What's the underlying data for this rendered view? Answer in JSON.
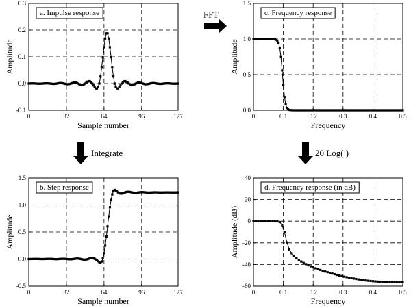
{
  "operations": {
    "fft": "FFT",
    "integrate": "Integrate",
    "log": "20 Log(   )"
  },
  "chart_data": [
    {
      "id": "a",
      "type": "scatter",
      "title": "a.  Impulse response",
      "xlabel": "Sample number",
      "ylabel": "Amplitude",
      "xlim": [
        0,
        127
      ],
      "ylim": [
        -0.1,
        0.3
      ],
      "xticks": [
        0,
        32,
        64,
        96,
        127
      ],
      "yticks": [
        -0.1,
        0.0,
        0.1,
        0.2,
        0.3
      ],
      "xtick_labels": [
        "0",
        "32",
        "64",
        "96",
        "127"
      ],
      "ytick_labels": [
        "-0.1",
        "0.0",
        "0.1",
        "0.2",
        "0.3"
      ],
      "grid": true,
      "connected": true,
      "y": [
        0.0,
        0.0003,
        0.0005,
        0.0006,
        0.0005,
        0.0003,
        0.0,
        -0.0003,
        -0.0005,
        -0.0006,
        -0.0005,
        -0.0003,
        0.0,
        0.0004,
        0.0008,
        0.001,
        0.0009,
        0.0005,
        0.0,
        -0.0006,
        -0.0011,
        -0.0014,
        -0.0012,
        -0.0007,
        0.0,
        0.0009,
        0.0016,
        0.0019,
        0.0017,
        0.0009,
        0.0,
        -0.0012,
        -0.0022,
        -0.0027,
        -0.0024,
        -0.0013,
        0.0,
        0.0017,
        0.0031,
        0.0038,
        0.0034,
        0.0018,
        0.0,
        -0.0025,
        -0.0045,
        -0.0056,
        -0.005,
        -0.0027,
        0.0,
        0.0038,
        0.0071,
        0.009,
        0.0082,
        0.0046,
        0.0,
        -0.007,
        -0.0138,
        -0.0185,
        -0.0182,
        -0.0115,
        0.0,
        0.0264,
        0.0597,
        0.0985,
        0.1361,
        0.1686,
        0.1876,
        0.1876,
        0.1686,
        0.1361,
        0.0985,
        0.0597,
        0.0264,
        0.0,
        -0.0115,
        -0.0182,
        -0.0185,
        -0.0138,
        -0.007,
        0.0,
        0.0046,
        0.0082,
        0.009,
        0.0071,
        0.0038,
        0.0,
        -0.0027,
        -0.005,
        -0.0056,
        -0.0045,
        -0.0025,
        0.0,
        0.0018,
        0.0034,
        0.0038,
        0.0031,
        0.0017,
        0.0,
        -0.0013,
        -0.0024,
        -0.0027,
        -0.0022,
        -0.0012,
        0.0,
        0.0009,
        0.0017,
        0.0019,
        0.0016,
        0.0009,
        0.0,
        -0.0007,
        -0.0012,
        -0.0014,
        -0.0011,
        -0.0006,
        0.0,
        0.0005,
        0.0009,
        0.001,
        0.0008,
        0.0004,
        0.0,
        -0.0003,
        -0.0005,
        -0.0006,
        -0.0005,
        -0.0003,
        0.0
      ]
    },
    {
      "id": "c",
      "type": "scatter",
      "title": "c.  Frequency response",
      "xlabel": "Frequency",
      "ylabel": "Amplitude",
      "xlim": [
        0,
        0.5
      ],
      "ylim": [
        0,
        1.5
      ],
      "xticks": [
        0,
        0.1,
        0.2,
        0.3,
        0.4,
        0.5
      ],
      "yticks": [
        0.0,
        0.5,
        1.0,
        1.5
      ],
      "xtick_labels": [
        "0",
        "0.1",
        "0.2",
        "0.3",
        "0.4",
        "0.5"
      ],
      "ytick_labels": [
        "0.0",
        "0.5",
        "1.0",
        "1.5"
      ],
      "grid": true,
      "connected": true,
      "x": [
        0.0,
        0.004,
        0.008,
        0.012,
        0.016,
        0.02,
        0.024,
        0.028,
        0.032,
        0.036,
        0.04,
        0.044,
        0.048,
        0.052,
        0.056,
        0.06,
        0.064,
        0.068,
        0.072,
        0.076,
        0.08,
        0.084,
        0.088,
        0.092,
        0.096,
        0.1,
        0.104,
        0.108,
        0.112,
        0.116,
        0.12,
        0.124,
        0.128,
        0.132,
        0.136,
        0.14,
        0.144,
        0.148,
        0.152,
        0.156,
        0.16,
        0.164,
        0.168,
        0.172,
        0.176,
        0.18,
        0.184,
        0.188,
        0.192,
        0.196,
        0.2,
        0.204,
        0.208,
        0.212,
        0.216,
        0.22,
        0.224,
        0.228,
        0.232,
        0.236,
        0.24,
        0.244,
        0.248,
        0.252,
        0.256,
        0.26,
        0.264,
        0.268,
        0.272,
        0.276,
        0.28,
        0.284,
        0.288,
        0.292,
        0.296,
        0.3,
        0.304,
        0.308,
        0.312,
        0.316,
        0.32,
        0.324,
        0.328,
        0.332,
        0.336,
        0.34,
        0.344,
        0.348,
        0.352,
        0.356,
        0.36,
        0.364,
        0.368,
        0.372,
        0.376,
        0.38,
        0.384,
        0.388,
        0.392,
        0.396,
        0.4,
        0.404,
        0.408,
        0.412,
        0.416,
        0.42,
        0.424,
        0.428,
        0.432,
        0.436,
        0.44,
        0.444,
        0.448,
        0.452,
        0.456,
        0.46,
        0.464,
        0.468,
        0.472,
        0.476,
        0.48,
        0.484,
        0.488,
        0.492,
        0.496,
        0.5
      ],
      "y": [
        1.0,
        1.0,
        1.0,
        1.0,
        1.0,
        1.0,
        1.0,
        1.0,
        1.0,
        1.0,
        1.0,
        1.0,
        1.0,
        1.0,
        1.0,
        1.0,
        0.999,
        0.998,
        0.995,
        0.989,
        0.976,
        0.945,
        0.877,
        0.747,
        0.559,
        0.353,
        0.185,
        0.082,
        0.032,
        0.012,
        0.005,
        0.002,
        0.001,
        0.0,
        0.0,
        0.0,
        0.0,
        0.0,
        0.0,
        0.0,
        0.0,
        0.0,
        0.0,
        0.0,
        0.0,
        0.0,
        0.0,
        0.0,
        0.0,
        0.0,
        0.0,
        0.0,
        0.0,
        0.0,
        0.0,
        0.0,
        0.0,
        0.0,
        0.0,
        0.0,
        0.0,
        0.0,
        0.0,
        0.0,
        0.0,
        0.0,
        0.0,
        0.0,
        0.0,
        0.0,
        0.0,
        0.0,
        0.0,
        0.0,
        0.0,
        0.0,
        0.0,
        0.0,
        0.0,
        0.0,
        0.0,
        0.0,
        0.0,
        0.0,
        0.0,
        0.0,
        0.0,
        0.0,
        0.0,
        0.0,
        0.0,
        0.0,
        0.0,
        0.0,
        0.0,
        0.0,
        0.0,
        0.0,
        0.0,
        0.0,
        0.0,
        0.0,
        0.0,
        0.0,
        0.0,
        0.0,
        0.0,
        0.0,
        0.0,
        0.0,
        0.0,
        0.0,
        0.0,
        0.0,
        0.0,
        0.0,
        0.0,
        0.0,
        0.0,
        0.0,
        0.0,
        0.0,
        0.0,
        0.0,
        0.0,
        0.0
      ]
    },
    {
      "id": "b",
      "type": "scatter",
      "title": "b.  Step response",
      "xlabel": "Sample number",
      "ylabel": "Amplitude",
      "xlim": [
        0,
        127
      ],
      "ylim": [
        -0.5,
        1.5
      ],
      "xticks": [
        0,
        32,
        64,
        96,
        127
      ],
      "yticks": [
        -0.5,
        0.0,
        0.5,
        1.0,
        1.5
      ],
      "xtick_labels": [
        "0",
        "32",
        "64",
        "96",
        "127"
      ],
      "ytick_labels": [
        "-0.5",
        "0.0",
        "0.5",
        "1.0",
        "1.5"
      ],
      "grid": true,
      "connected": true,
      "y": [
        0.0,
        0.0,
        0.001,
        0.002,
        0.002,
        0.002,
        0.002,
        0.002,
        0.002,
        0.001,
        0.0,
        0.0,
        0.0,
        0.0,
        0.001,
        0.002,
        0.003,
        0.003,
        0.003,
        0.003,
        0.002,
        0.0,
        -0.001,
        -0.002,
        -0.002,
        -0.001,
        0.001,
        0.003,
        0.004,
        0.005,
        0.005,
        0.004,
        0.002,
        -0.001,
        -0.003,
        -0.004,
        -0.004,
        -0.002,
        0.001,
        0.005,
        0.008,
        0.009,
        0.009,
        0.006,
        0.002,
        -0.004,
        -0.008,
        -0.011,
        -0.011,
        -0.008,
        -0.002,
        0.006,
        0.013,
        0.017,
        0.018,
        0.013,
        0.005,
        -0.009,
        -0.023,
        -0.041,
        -0.059,
        -0.071,
        -0.046,
        0.013,
        0.111,
        0.247,
        0.416,
        0.603,
        0.79,
        0.959,
        1.095,
        1.194,
        1.253,
        1.279,
        1.268,
        1.25,
        1.232,
        1.218,
        1.211,
        1.211,
        1.216,
        1.224,
        1.233,
        1.24,
        1.244,
        1.244,
        1.241,
        1.236,
        1.231,
        1.227,
        1.224,
        1.224,
        1.226,
        1.23,
        1.233,
        1.236,
        1.238,
        1.237,
        1.236,
        1.233,
        1.231,
        1.229,
        1.228,
        1.229,
        1.23,
        1.231,
        1.233,
        1.234,
        1.234,
        1.233,
        1.232,
        1.231,
        1.23,
        1.23,
        1.231,
        1.231,
        1.232,
        1.233,
        1.233,
        1.233,
        1.232,
        1.231,
        1.231,
        1.231,
        1.231,
        1.232,
        1.232,
        1.232
      ]
    },
    {
      "id": "d",
      "type": "scatter",
      "title": "d.  Frequency response (in dB)",
      "xlabel": "Frequency",
      "ylabel": "Amplitude (dB)",
      "xlim": [
        0,
        0.5
      ],
      "ylim": [
        -60,
        40
      ],
      "xticks": [
        0,
        0.1,
        0.2,
        0.3,
        0.4,
        0.5
      ],
      "yticks": [
        -60,
        -40,
        -20,
        0,
        20,
        40
      ],
      "xtick_labels": [
        "0",
        "0.1",
        "0.2",
        "0.3",
        "0.4",
        "0.5"
      ],
      "ytick_labels": [
        "-60",
        "-40",
        "-20",
        "0",
        "20",
        "40"
      ],
      "grid": true,
      "connected": true,
      "x": [
        0.0,
        0.008,
        0.016,
        0.024,
        0.032,
        0.04,
        0.048,
        0.056,
        0.064,
        0.072,
        0.08,
        0.088,
        0.096,
        0.104,
        0.112,
        0.12,
        0.128,
        0.136,
        0.144,
        0.152,
        0.16,
        0.168,
        0.176,
        0.184,
        0.192,
        0.2,
        0.208,
        0.216,
        0.224,
        0.232,
        0.24,
        0.248,
        0.256,
        0.264,
        0.272,
        0.28,
        0.288,
        0.296,
        0.304,
        0.312,
        0.32,
        0.328,
        0.336,
        0.344,
        0.352,
        0.36,
        0.368,
        0.376,
        0.384,
        0.392,
        0.4,
        0.408,
        0.416,
        0.424,
        0.432,
        0.44,
        0.448,
        0.456,
        0.464,
        0.472,
        0.48,
        0.488,
        0.496,
        0.5
      ],
      "y": [
        0.0,
        0.0,
        0.0,
        0.0,
        0.0,
        0.0,
        0.0,
        0.0,
        0.0,
        0.0,
        -0.2,
        -0.8,
        -3.8,
        -10.3,
        -19.6,
        -26.0,
        -29.6,
        -32.2,
        -34.2,
        -35.9,
        -37.3,
        -38.6,
        -39.7,
        -40.8,
        -41.7,
        -42.6,
        -43.5,
        -44.3,
        -45.0,
        -45.8,
        -46.5,
        -47.1,
        -47.8,
        -48.4,
        -49.0,
        -49.6,
        -50.2,
        -50.7,
        -51.2,
        -51.7,
        -52.2,
        -52.6,
        -53.0,
        -53.4,
        -53.8,
        -54.1,
        -54.4,
        -54.7,
        -55.0,
        -55.2,
        -55.4,
        -55.6,
        -55.8,
        -55.9,
        -56.0,
        -56.1,
        -56.2,
        -56.3,
        -56.3,
        -56.4,
        -56.4,
        -56.4,
        -56.4,
        -56.4
      ]
    }
  ]
}
